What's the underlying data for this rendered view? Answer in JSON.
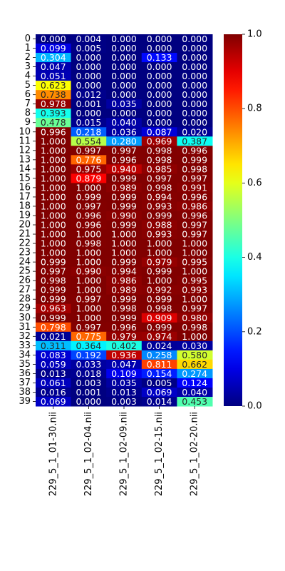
{
  "chart_data": {
    "type": "heatmap",
    "colormap": "jet",
    "vmin": 0,
    "vmax": 1,
    "colorbar_ticks": [
      "0.0",
      "0.2",
      "0.4",
      "0.6",
      "0.8",
      "1.0"
    ],
    "colorbar_tick_values": [
      0,
      0.2,
      0.4,
      0.6,
      0.8,
      1.0
    ],
    "x_categories": [
      "229_5_1_01-30.nii",
      "229_5_1_02-04.nii",
      "229_5_1_02-09.nii",
      "229_5_1_02-15.nii",
      "229_5_1_02-20.nii"
    ],
    "y_categories": [
      "0",
      "1",
      "2",
      "3",
      "4",
      "5",
      "6",
      "7",
      "8",
      "9",
      "10",
      "11",
      "12",
      "13",
      "14",
      "15",
      "16",
      "17",
      "18",
      "19",
      "20",
      "21",
      "22",
      "23",
      "24",
      "25",
      "26",
      "27",
      "28",
      "29",
      "30",
      "31",
      "32",
      "33",
      "34",
      "35",
      "36",
      "37",
      "38",
      "39"
    ],
    "values": [
      [
        0.0,
        0.004,
        0.0,
        0.0,
        0.0
      ],
      [
        0.099,
        0.005,
        0.0,
        0.0,
        0.0
      ],
      [
        0.304,
        0.0,
        0.0,
        0.133,
        0.0
      ],
      [
        0.047,
        0.0,
        0.0,
        0.0,
        0.0
      ],
      [
        0.051,
        0.0,
        0.0,
        0.0,
        0.0
      ],
      [
        0.623,
        0.0,
        0.0,
        0.0,
        0.0
      ],
      [
        0.738,
        0.012,
        0.0,
        0.0,
        0.0
      ],
      [
        0.978,
        0.001,
        0.035,
        0.0,
        0.0
      ],
      [
        0.393,
        0.0,
        0.0,
        0.0,
        0.0
      ],
      [
        0.478,
        0.015,
        0.04,
        0.0,
        0.0
      ],
      [
        0.996,
        0.218,
        0.036,
        0.087,
        0.02
      ],
      [
        1.0,
        0.554,
        0.28,
        0.969,
        0.387
      ],
      [
        1.0,
        0.997,
        0.997,
        0.998,
        0.996
      ],
      [
        1.0,
        0.776,
        0.996,
        0.998,
        0.999
      ],
      [
        1.0,
        0.975,
        0.94,
        0.985,
        0.998
      ],
      [
        1.0,
        0.879,
        0.999,
        0.997,
        0.997
      ],
      [
        1.0,
        1.0,
        0.989,
        0.998,
        0.991
      ],
      [
        1.0,
        0.999,
        0.999,
        0.994,
        0.996
      ],
      [
        1.0,
        0.997,
        0.999,
        0.993,
        0.986
      ],
      [
        1.0,
        0.996,
        0.99,
        0.999,
        0.996
      ],
      [
        1.0,
        0.996,
        0.999,
        0.988,
        0.997
      ],
      [
        1.0,
        1.0,
        1.0,
        0.993,
        0.997
      ],
      [
        1.0,
        0.998,
        1.0,
        1.0,
        1.0
      ],
      [
        1.0,
        1.0,
        1.0,
        1.0,
        1.0
      ],
      [
        0.999,
        1.0,
        0.999,
        0.979,
        0.995
      ],
      [
        0.997,
        0.99,
        0.994,
        0.999,
        1.0
      ],
      [
        0.998,
        1.0,
        0.986,
        1.0,
        0.995
      ],
      [
        0.999,
        1.0,
        0.989,
        0.992,
        0.993
      ],
      [
        0.999,
        0.997,
        0.999,
        0.999,
        1.0
      ],
      [
        0.963,
        1.0,
        0.998,
        0.998,
        0.997
      ],
      [
        0.999,
        1.0,
        0.999,
        0.909,
        0.98
      ],
      [
        0.798,
        0.997,
        0.996,
        0.999,
        0.998
      ],
      [
        0.021,
        0.775,
        0.979,
        0.974,
        1.0
      ],
      [
        0.311,
        0.364,
        0.402,
        0.024,
        0.03
      ],
      [
        0.083,
        0.192,
        0.936,
        0.258,
        0.58
      ],
      [
        0.059,
        0.033,
        0.047,
        0.811,
        0.662
      ],
      [
        0.013,
        0.018,
        0.109,
        0.154,
        0.274
      ],
      [
        0.061,
        0.003,
        0.035,
        0.005,
        0.124
      ],
      [
        0.016,
        0.001,
        0.013,
        0.069,
        0.04
      ],
      [
        0.069,
        0.0,
        0.003,
        0.014,
        0.453
      ]
    ],
    "title": "",
    "xlabel": "",
    "ylabel": ""
  }
}
